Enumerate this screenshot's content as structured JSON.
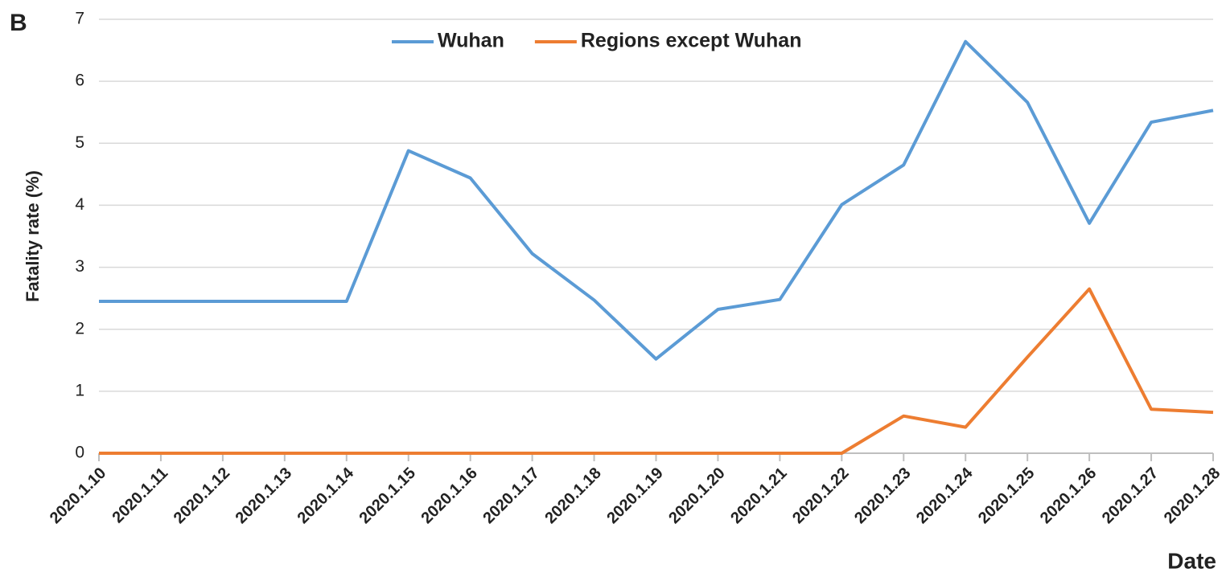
{
  "chart_data": {
    "type": "line",
    "panel_label": "B",
    "y_label": "Fatality rate (%)",
    "x_label": "Date",
    "categories": [
      "2020.1.10",
      "2020.1.11",
      "2020.1.12",
      "2020.1.13",
      "2020.1.14",
      "2020.1.15",
      "2020.1.16",
      "2020.1.17",
      "2020.1.18",
      "2020.1.19",
      "2020.1.20",
      "2020.1.21",
      "2020.1.22",
      "2020.1.23",
      "2020.1.24",
      "2020.1.25",
      "2020.1.26",
      "2020.1.27",
      "2020.1.28"
    ],
    "series": [
      {
        "name": "Wuhan",
        "color": "#5b9bd5",
        "values": [
          2.45,
          2.45,
          2.45,
          2.45,
          2.45,
          4.88,
          4.44,
          3.22,
          2.47,
          1.52,
          2.32,
          2.48,
          4.01,
          4.65,
          6.64,
          5.66,
          3.71,
          5.34,
          5.53
        ]
      },
      {
        "name": "Regions except Wuhan",
        "color": "#ed7d31",
        "values": [
          0,
          0,
          0,
          0,
          0,
          0,
          0,
          0,
          0,
          0,
          0,
          0,
          0,
          0.6,
          0.42,
          1.55,
          2.65,
          0.71,
          0.66
        ]
      }
    ],
    "ylim": [
      0,
      7
    ],
    "yticks": [
      0,
      1,
      2,
      3,
      4,
      5,
      6,
      7
    ],
    "grid": true,
    "legend": "top"
  }
}
